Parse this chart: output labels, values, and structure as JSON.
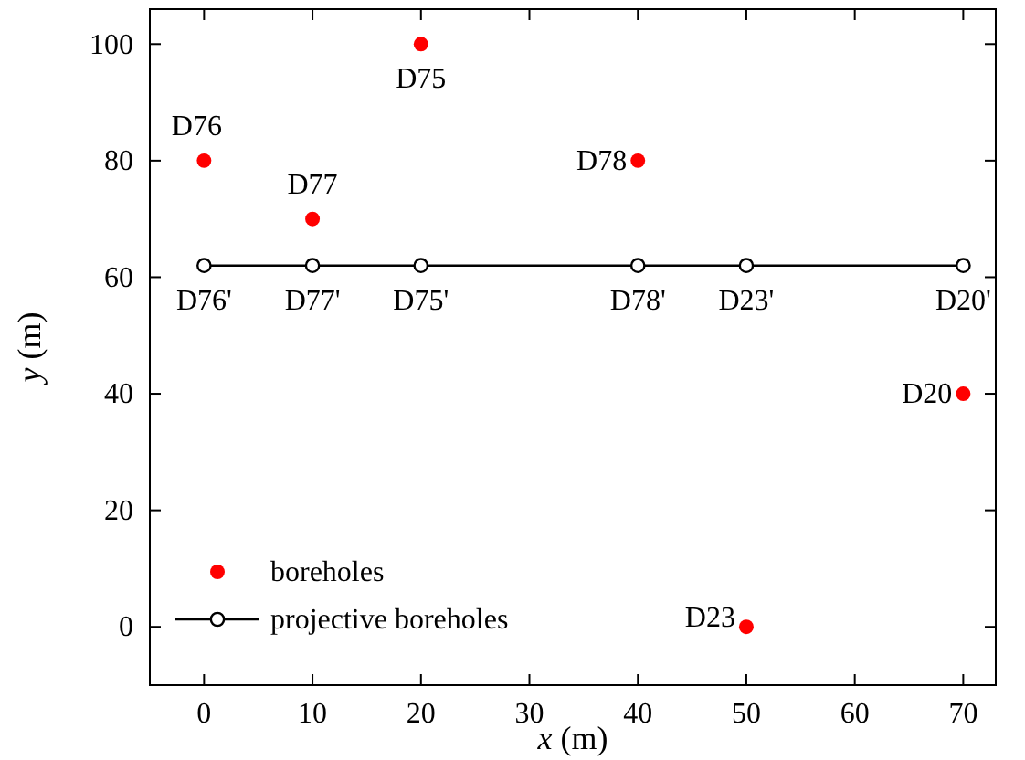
{
  "chart_data": {
    "type": "scatter",
    "xlabel": "x (m)",
    "ylabel": "y (m)",
    "xlim": [
      -5,
      73
    ],
    "ylim": [
      -10,
      106
    ],
    "xticks": [
      0,
      10,
      20,
      30,
      40,
      50,
      60,
      70
    ],
    "yticks": [
      0,
      20,
      40,
      60,
      80,
      100
    ],
    "legend": "bottom left",
    "grid": false,
    "series": [
      {
        "name": "boreholes",
        "marker": "circle",
        "color": "#ff0000",
        "x": [
          0,
          10,
          20,
          40,
          70,
          50
        ],
        "values": [
          80,
          70,
          100,
          80,
          40,
          0
        ]
      },
      {
        "name": "projective boreholes",
        "type": "line",
        "marker": "circle",
        "line_style": "solid",
        "color": "#000000",
        "x": [
          0,
          10,
          20,
          40,
          50,
          70
        ],
        "values": [
          62,
          62,
          62,
          62,
          62,
          62
        ]
      }
    ],
    "annotations": [
      {
        "text": "D76",
        "x": 0,
        "y": 80
      },
      {
        "text": "D77",
        "x": 10,
        "y": 70
      },
      {
        "text": "D75",
        "x": 20,
        "y": 100
      },
      {
        "text": "D78",
        "x": 40,
        "y": 80
      },
      {
        "text": "D20",
        "x": 70,
        "y": 40
      },
      {
        "text": "D23",
        "x": 50,
        "y": 0
      },
      {
        "text": "D76'",
        "x": 0,
        "y": 62
      },
      {
        "text": "D77'",
        "x": 10,
        "y": 62
      },
      {
        "text": "D75'",
        "x": 20,
        "y": 62
      },
      {
        "text": "D78'",
        "x": 40,
        "y": 62
      },
      {
        "text": "D23'",
        "x": 50,
        "y": 62
      },
      {
        "text": "D20'",
        "x": 70,
        "y": 62
      }
    ]
  }
}
